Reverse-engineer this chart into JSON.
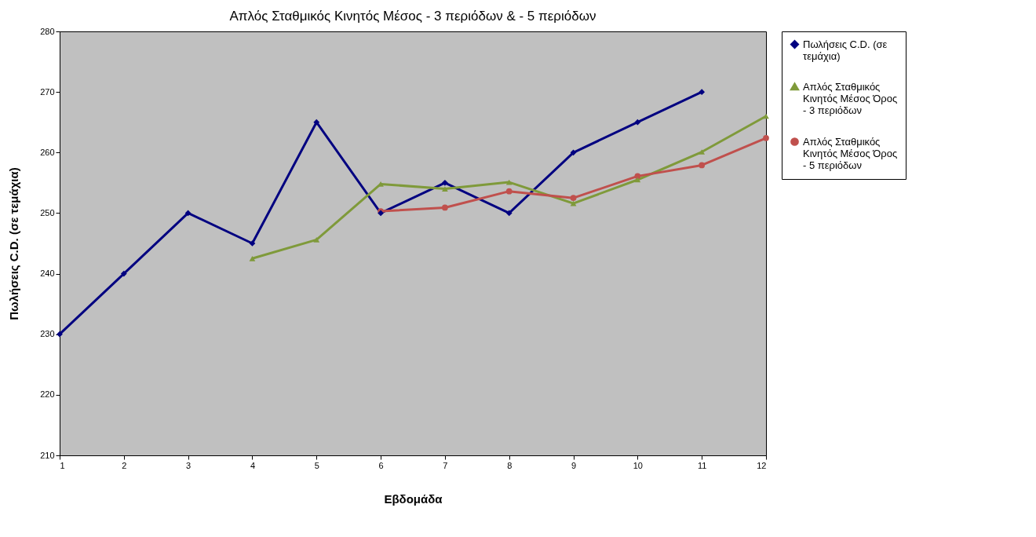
{
  "chart_data": {
    "type": "line",
    "title": "Απλός Σταθμικός Κινητός Μέσος - 3 περιόδων & - 5 περιόδων",
    "xlabel": "Εβδομάδα",
    "ylabel": "Πωλήσεις C.D.  (σε τεμάχια)",
    "x": [
      1,
      2,
      3,
      4,
      5,
      6,
      7,
      8,
      9,
      10,
      11,
      12
    ],
    "series": [
      {
        "name": "Πωλήσεις C.D.  (σε τεμάχια)",
        "color": "#000080",
        "marker": "diamond",
        "values": [
          230,
          240,
          250,
          245,
          265,
          250,
          255,
          250,
          260,
          265,
          270,
          null
        ]
      },
      {
        "name": "Απλός Σταθμικός Κινητός Μέσος Όρος - 3 περιόδων",
        "color": "#7f9a3a",
        "marker": "triangle",
        "values": [
          null,
          null,
          null,
          242.5,
          245.6,
          254.8,
          254.0,
          255.1,
          251.6,
          255.5,
          260.1,
          266.0
        ]
      },
      {
        "name": "Απλός Σταθμικός Κινητός Μέσος Όρος - 5 περιόδων",
        "color": "#c0504d",
        "marker": "circle",
        "values": [
          null,
          null,
          null,
          null,
          null,
          250.3,
          250.9,
          253.6,
          252.5,
          256.1,
          257.9,
          262.4
        ]
      }
    ],
    "xlim": [
      1,
      12
    ],
    "xticks": [
      1,
      2,
      3,
      4,
      5,
      6,
      7,
      8,
      9,
      10,
      11,
      12
    ],
    "ylim": [
      210,
      280
    ],
    "yticks": [
      210,
      220,
      230,
      240,
      250,
      260,
      270,
      280
    ],
    "grid": false,
    "legend": "right",
    "line_style": "solid"
  }
}
